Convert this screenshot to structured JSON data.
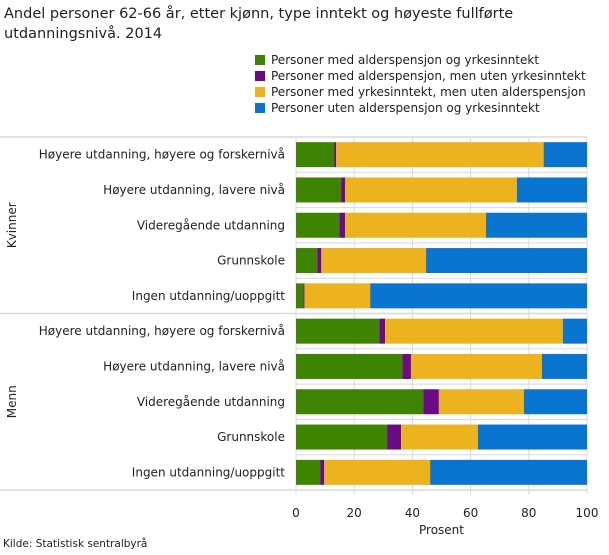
{
  "chart_data": {
    "type": "bar",
    "orientation": "horizontal",
    "stacked": true,
    "title": "Andel personer 62-66 år, etter kjønn, type inntekt og høyeste fullførte utdanningsnivå. 2014",
    "xlabel": "Prosent",
    "xlim": [
      0,
      100
    ],
    "xticks": [
      "0",
      "20",
      "40",
      "60",
      "80",
      "100"
    ],
    "grid": true,
    "legend_position": "top-right",
    "groups": [
      {
        "name": "Kvinner",
        "categories": [
          "Høyere utdanning, høyere og forskernivå",
          "Høyere utdanning, lavere nivå",
          "Videregående utdanning",
          "Grunnskole",
          "Ingen utdanning/uoppgitt"
        ]
      },
      {
        "name": "Menn",
        "categories": [
          "Høyere utdanning, høyere og forskernivå",
          "Høyere utdanning, lavere nivå",
          "Videregående utdanning",
          "Grunnskole",
          "Ingen utdanning/uoppgitt"
        ]
      }
    ],
    "series": [
      {
        "name": "Personer med alderspensjon og yrkesinntekt",
        "color": "#3e8302",
        "values": [
          13.1,
          15.5,
          14.9,
          7.3,
          2.5,
          28.6,
          36.5,
          43.7,
          31.3,
          8.3
        ]
      },
      {
        "name": "Personer med alderspensjon, men uten yrkesinntekt",
        "color": "#6a0a84",
        "values": [
          0.7,
          1.4,
          2.0,
          1.4,
          0.4,
          2.0,
          3.0,
          5.4,
          4.8,
          1.4
        ]
      },
      {
        "name": "Personer med yrkesinntekt, men uten alderspensjon",
        "color": "#ecb31f",
        "values": [
          71.3,
          59.0,
          48.4,
          36.0,
          22.6,
          61.1,
          45.0,
          29.2,
          26.4,
          36.4
        ]
      },
      {
        "name": "Personer uten alderspensjon og yrkesinntekt",
        "color": "#0a75d0",
        "values": [
          14.9,
          24.1,
          34.7,
          55.3,
          74.5,
          8.3,
          15.5,
          21.7,
          37.5,
          53.9
        ]
      }
    ]
  },
  "source": "Kilde: Statistisk sentralbyrå"
}
